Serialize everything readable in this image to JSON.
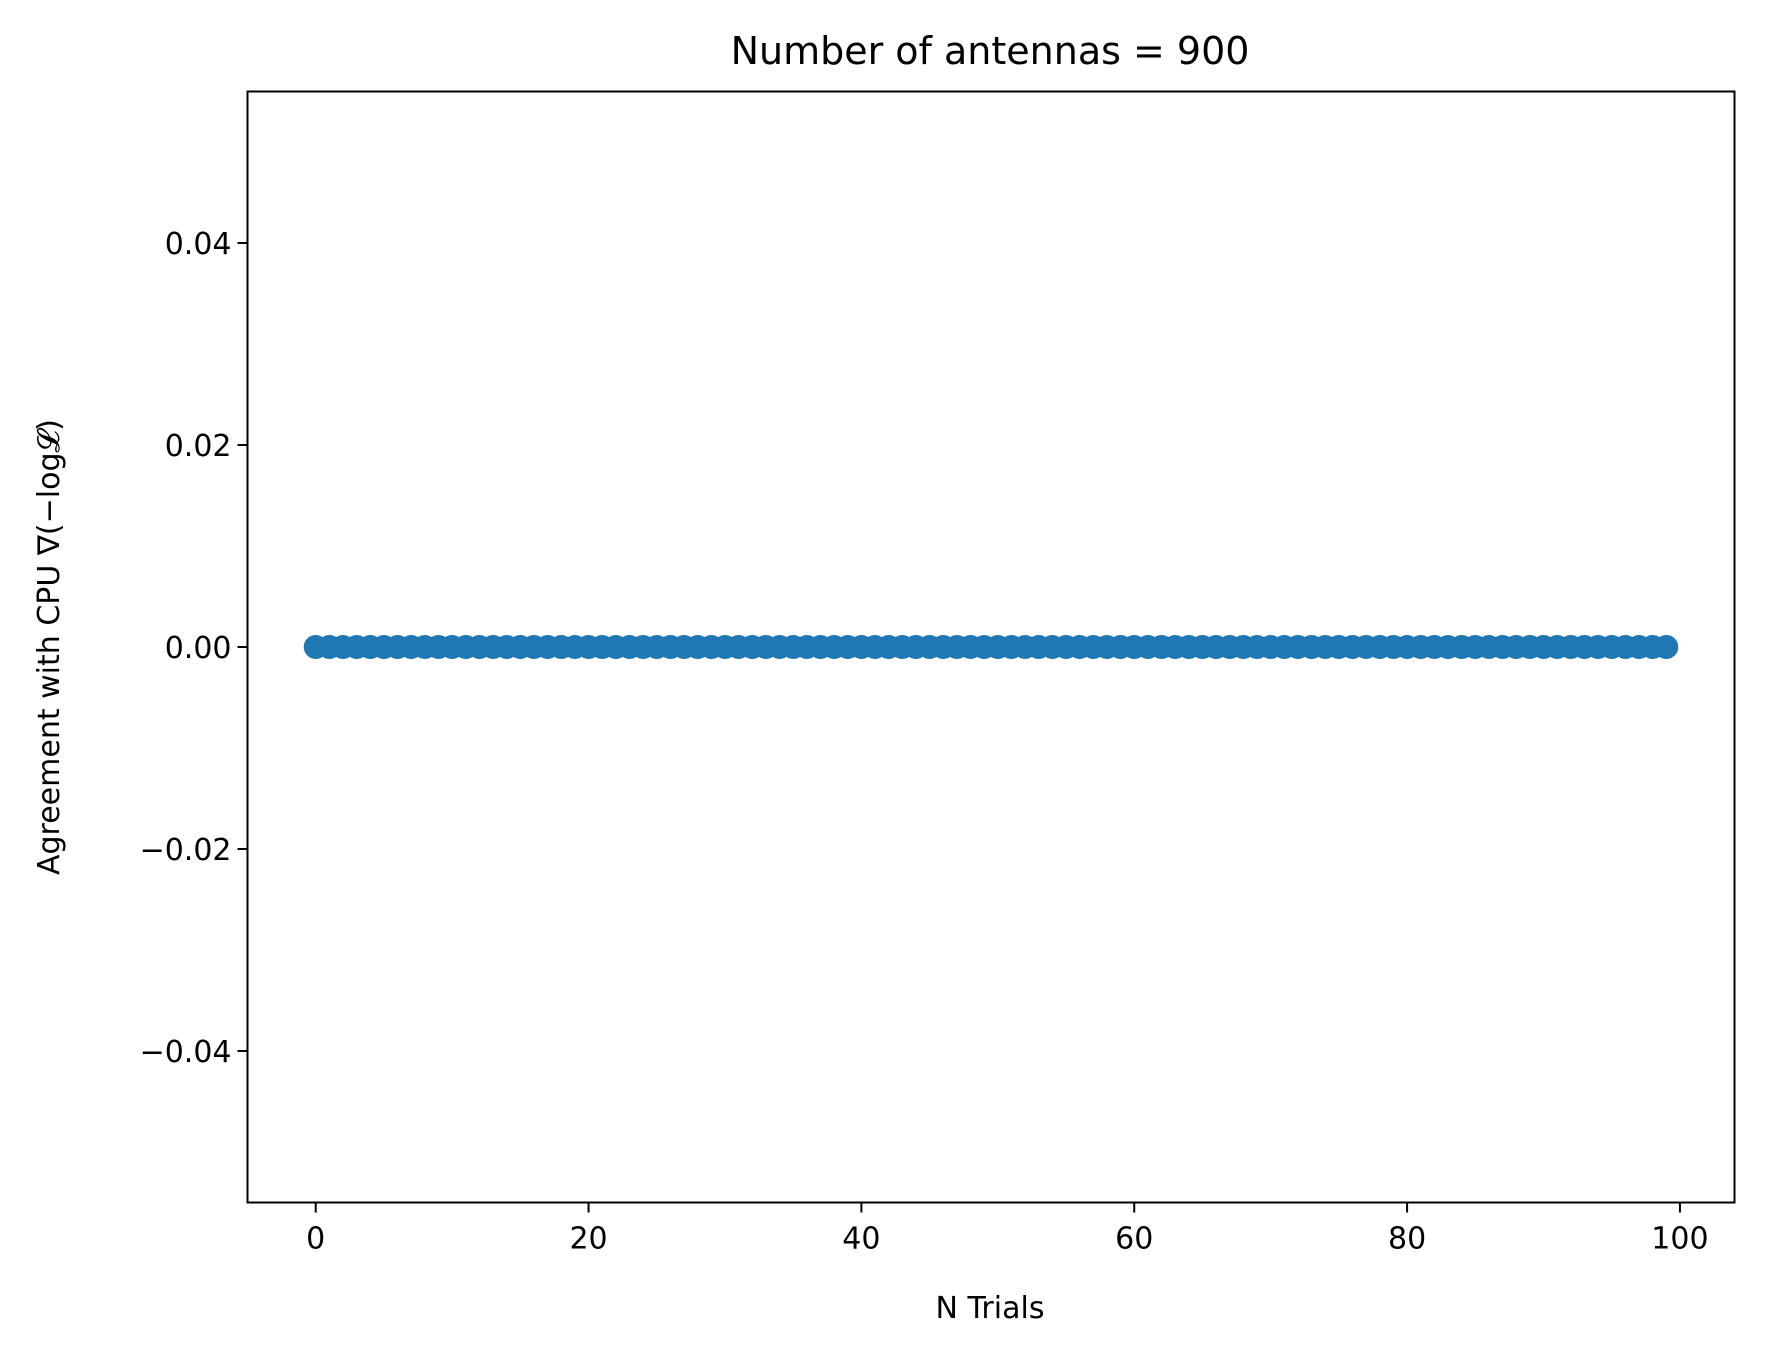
{
  "chart_data": {
    "type": "scatter",
    "title": "Number of antennas = 900",
    "xlabel": "N Trials",
    "ylabel": "Agreement with CPU ∇(−log𝓛)",
    "xlim": [
      -5,
      104
    ],
    "ylim": [
      -0.055,
      0.055
    ],
    "x_ticks": [
      0,
      20,
      40,
      60,
      80,
      100
    ],
    "x_tick_labels": [
      "0",
      "20",
      "40",
      "60",
      "80",
      "100"
    ],
    "y_ticks": [
      0.04,
      0.02,
      0.0,
      -0.02,
      -0.04
    ],
    "y_tick_labels": [
      "0.04",
      "0.02",
      "0.00",
      "−0.02",
      "−0.04"
    ],
    "grid": false,
    "legend": "none",
    "marker_color": "#1f77b4",
    "series": [
      {
        "x": [
          0,
          1,
          2,
          3,
          4,
          5,
          6,
          7,
          8,
          9,
          10,
          11,
          12,
          13,
          14,
          15,
          16,
          17,
          18,
          19,
          20,
          21,
          22,
          23,
          24,
          25,
          26,
          27,
          28,
          29,
          30,
          31,
          32,
          33,
          34,
          35,
          36,
          37,
          38,
          39,
          40,
          41,
          42,
          43,
          44,
          45,
          46,
          47,
          48,
          49,
          50,
          51,
          52,
          53,
          54,
          55,
          56,
          57,
          58,
          59,
          60,
          61,
          62,
          63,
          64,
          65,
          66,
          67,
          68,
          69,
          70,
          71,
          72,
          73,
          74,
          75,
          76,
          77,
          78,
          79,
          80,
          81,
          82,
          83,
          84,
          85,
          86,
          87,
          88,
          89,
          90,
          91,
          92,
          93,
          94,
          95,
          96,
          97,
          98,
          99
        ],
        "y": [
          0,
          0,
          0,
          0,
          0,
          0,
          0,
          0,
          0,
          0,
          0,
          0,
          0,
          0,
          0,
          0,
          0,
          0,
          0,
          0,
          0,
          0,
          0,
          0,
          0,
          0,
          0,
          0,
          0,
          0,
          0,
          0,
          0,
          0,
          0,
          0,
          0,
          0,
          0,
          0,
          0,
          0,
          0,
          0,
          0,
          0,
          0,
          0,
          0,
          0,
          0,
          0,
          0,
          0,
          0,
          0,
          0,
          0,
          0,
          0,
          0,
          0,
          0,
          0,
          0,
          0,
          0,
          0,
          0,
          0,
          0,
          0,
          0,
          0,
          0,
          0,
          0,
          0,
          0,
          0,
          0,
          0,
          0,
          0,
          0,
          0,
          0,
          0,
          0,
          0,
          0,
          0,
          0,
          0,
          0,
          0,
          0,
          0,
          0,
          0
        ]
      }
    ]
  }
}
